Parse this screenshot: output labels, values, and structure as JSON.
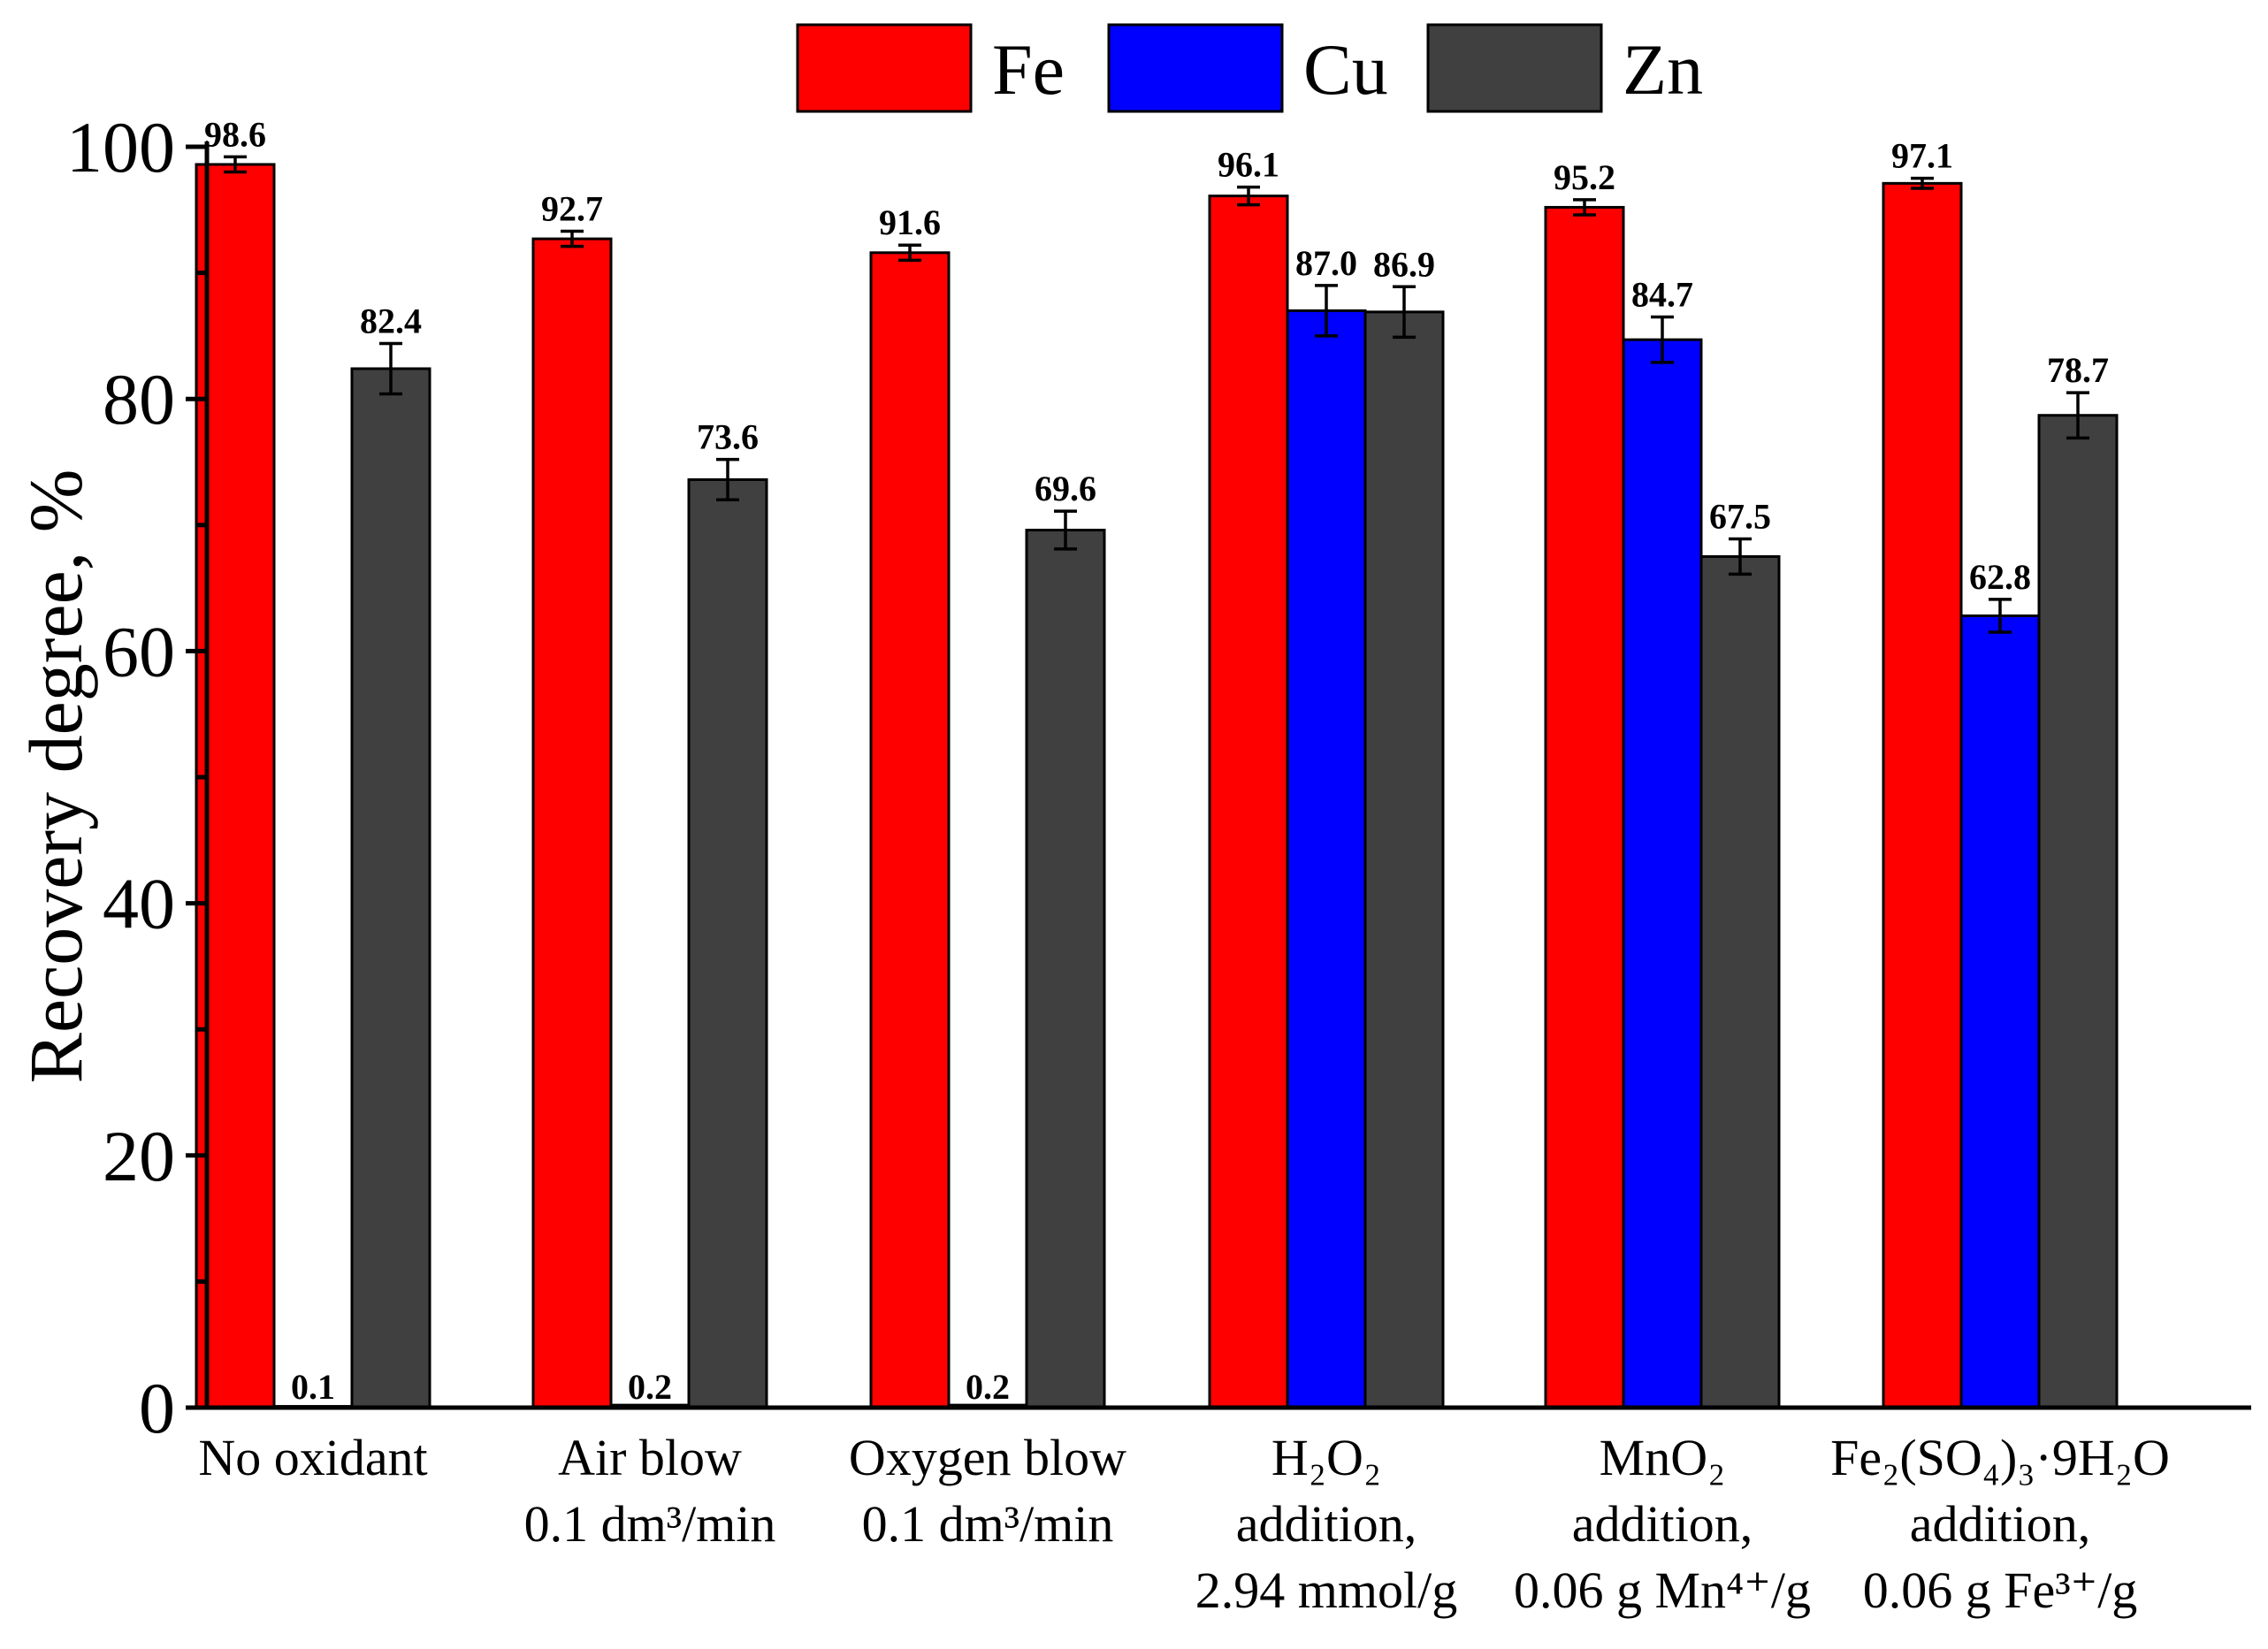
{
  "chart_data": {
    "type": "bar",
    "title": "",
    "xlabel": "",
    "ylabel": "Recovery degree, %",
    "ylim": [
      0,
      100
    ],
    "yticks": [
      0,
      20,
      40,
      60,
      80,
      100
    ],
    "legend_position": "top-center",
    "categories": [
      {
        "lines": [
          "No oxidant"
        ]
      },
      {
        "lines": [
          "Air blow",
          "0.1 dm³/min"
        ]
      },
      {
        "lines": [
          "Oxygen blow",
          "0.1 dm³/min"
        ]
      },
      {
        "lines": [
          "H₂O₂",
          "addition,",
          "2.94 mmol/g"
        ]
      },
      {
        "lines": [
          "MnO₂",
          "addition,",
          "0.06 g Mn⁴⁺/g"
        ]
      },
      {
        "lines": [
          "Fe₂(SO₄)₃·9H₂O",
          "addition,",
          "0.06 g Fe³⁺/g"
        ]
      }
    ],
    "series": [
      {
        "name": "Fe",
        "color": "#ff0000",
        "values": [
          98.6,
          92.7,
          91.6,
          96.1,
          95.2,
          97.1
        ],
        "labels": [
          "98.6",
          "92.7",
          "91.6",
          "96.1",
          "95.2",
          "97.1"
        ],
        "errors": [
          0.6,
          0.6,
          0.6,
          0.7,
          0.6,
          0.4
        ]
      },
      {
        "name": "Cu",
        "color": "#0000ff",
        "values": [
          0.1,
          0.2,
          0.2,
          87.0,
          84.7,
          62.8
        ],
        "labels": [
          "0.1",
          "0.2",
          "0.2",
          "87.0",
          "84.7",
          "62.8"
        ],
        "errors": [
          null,
          null,
          null,
          2.0,
          1.8,
          1.3
        ]
      },
      {
        "name": "Zn",
        "color": "#404040",
        "values": [
          82.4,
          73.6,
          69.6,
          86.9,
          67.5,
          78.7
        ],
        "labels": [
          "82.4",
          "73.6",
          "69.6",
          "86.9",
          "67.5",
          "78.7"
        ],
        "errors": [
          2.0,
          1.6,
          1.5,
          2.0,
          1.4,
          1.8
        ]
      }
    ]
  }
}
